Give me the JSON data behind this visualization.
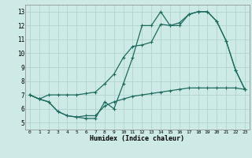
{
  "xlabel": "Humidex (Indice chaleur)",
  "bg_color": "#ceeae6",
  "grid_color": "#afd4d0",
  "line_color": "#1e6b60",
  "xlim": [
    -0.5,
    23.5
  ],
  "ylim": [
    4.5,
    13.5
  ],
  "xticks": [
    0,
    1,
    2,
    3,
    4,
    5,
    6,
    7,
    8,
    9,
    10,
    11,
    12,
    13,
    14,
    15,
    16,
    17,
    18,
    19,
    20,
    21,
    22,
    23
  ],
  "yticks": [
    5,
    6,
    7,
    8,
    9,
    10,
    11,
    12,
    13
  ],
  "line1_x": [
    0,
    1,
    2,
    3,
    4,
    5,
    6,
    7,
    8,
    9,
    10,
    11,
    12,
    13,
    14,
    15,
    16,
    17,
    18,
    19,
    20,
    21,
    22,
    23
  ],
  "line1_y": [
    7.0,
    6.7,
    6.5,
    5.8,
    5.5,
    5.4,
    5.3,
    5.3,
    6.5,
    6.0,
    7.8,
    9.7,
    12.0,
    12.0,
    13.0,
    12.0,
    12.0,
    12.8,
    13.0,
    13.0,
    12.3,
    10.9,
    8.8,
    7.4
  ],
  "line2_x": [
    0,
    1,
    2,
    3,
    4,
    5,
    6,
    7,
    8,
    9,
    10,
    11,
    12,
    13,
    14,
    15,
    16,
    17,
    18,
    19,
    20,
    21,
    22,
    23
  ],
  "line2_y": [
    7.0,
    6.7,
    7.0,
    7.0,
    7.0,
    7.0,
    7.1,
    7.2,
    7.8,
    8.5,
    9.7,
    10.5,
    10.6,
    10.8,
    12.1,
    12.0,
    12.2,
    12.8,
    13.0,
    13.0,
    12.3,
    10.9,
    8.8,
    7.4
  ],
  "line3_x": [
    0,
    1,
    2,
    3,
    4,
    5,
    6,
    7,
    8,
    9,
    10,
    11,
    12,
    13,
    14,
    15,
    16,
    17,
    18,
    19,
    20,
    21,
    22,
    23
  ],
  "line3_y": [
    7.0,
    6.7,
    6.5,
    5.8,
    5.5,
    5.4,
    5.5,
    5.5,
    6.2,
    6.5,
    6.7,
    6.9,
    7.0,
    7.1,
    7.2,
    7.3,
    7.4,
    7.5,
    7.5,
    7.5,
    7.5,
    7.5,
    7.5,
    7.4
  ]
}
